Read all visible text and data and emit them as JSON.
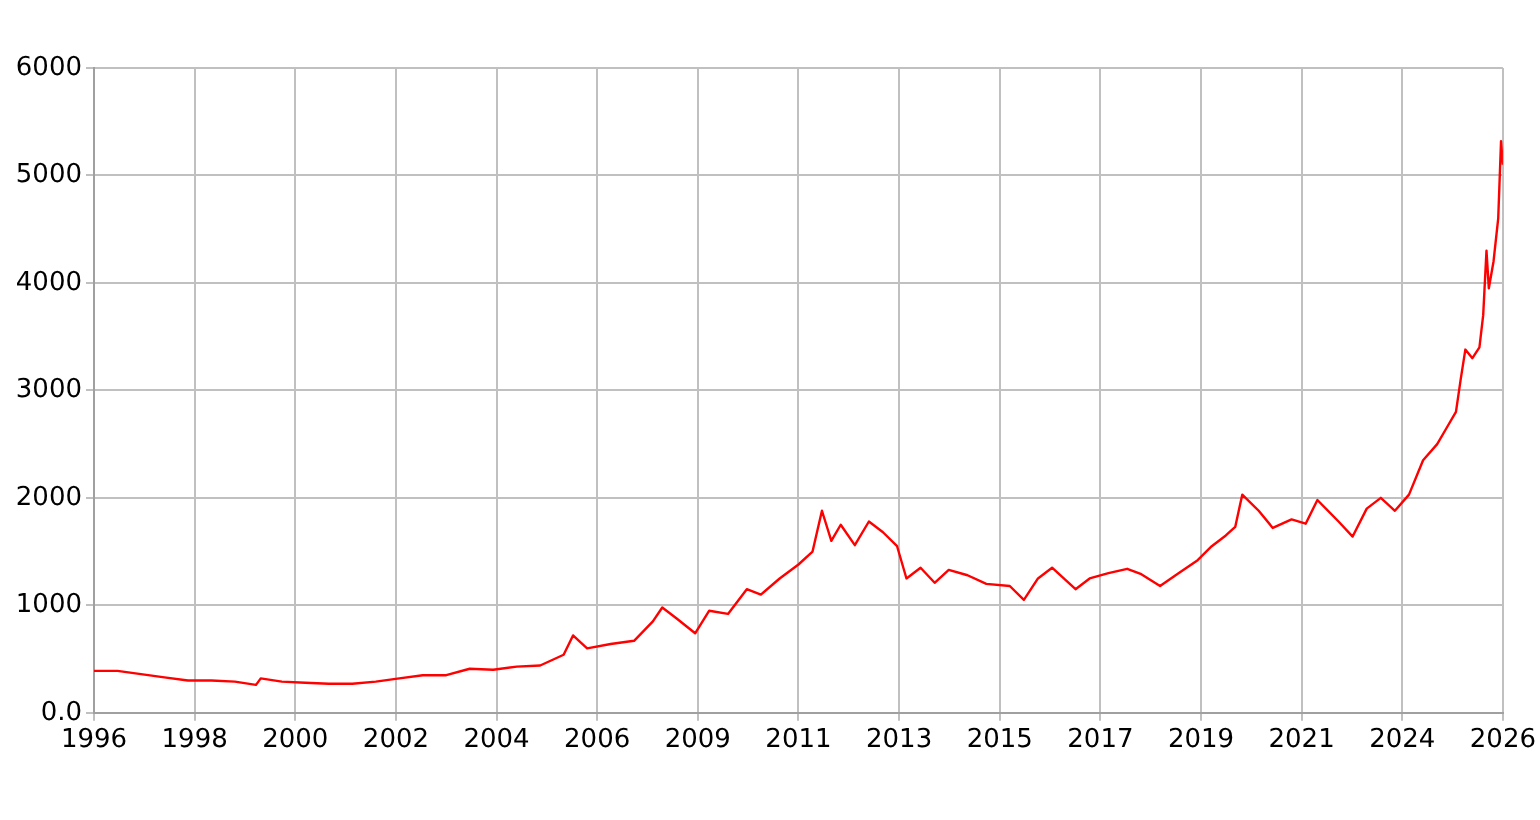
{
  "chart_data": {
    "type": "line",
    "x": [
      1995.7,
      1996.2,
      1996.7,
      1997.2,
      1997.7,
      1998.2,
      1998.7,
      1999.15,
      1999.25,
      1999.7,
      2000.2,
      2000.7,
      2001.2,
      2001.7,
      2002.2,
      2002.7,
      2003.2,
      2003.7,
      2004.2,
      2004.7,
      2005.2,
      2005.7,
      2005.9,
      2006.2,
      2006.7,
      2007.2,
      2007.6,
      2007.8,
      2008.1,
      2008.5,
      2008.8,
      2009.2,
      2009.6,
      2009.9,
      2010.3,
      2010.7,
      2011.0,
      2011.2,
      2011.4,
      2011.6,
      2011.9,
      2012.2,
      2012.5,
      2012.8,
      2013.0,
      2013.3,
      2013.6,
      2013.9,
      2014.3,
      2014.7,
      2015.2,
      2015.5,
      2015.8,
      2016.1,
      2016.6,
      2016.9,
      2017.3,
      2017.7,
      2018.0,
      2018.4,
      2018.8,
      2019.2,
      2019.5,
      2019.8,
      2020.0,
      2020.15,
      2020.5,
      2020.8,
      2021.2,
      2021.5,
      2021.75,
      2022.2,
      2022.5,
      2022.8,
      2023.1,
      2023.4,
      2023.7,
      2024.0,
      2024.3,
      2024.5,
      2024.7,
      2024.8,
      2024.9,
      2025.05,
      2025.2,
      2025.28,
      2025.35,
      2025.4,
      2025.5,
      2025.6,
      2025.66,
      2025.7
    ],
    "series": [
      {
        "color": "#ff0000",
        "values": [
          390,
          390,
          360,
          330,
          300,
          300,
          290,
          260,
          320,
          290,
          280,
          270,
          270,
          290,
          320,
          350,
          350,
          410,
          400,
          430,
          440,
          540,
          720,
          600,
          640,
          670,
          850,
          980,
          880,
          740,
          950,
          920,
          1150,
          1100,
          1250,
          1380,
          1500,
          1880,
          1600,
          1750,
          1560,
          1780,
          1680,
          1550,
          1250,
          1350,
          1210,
          1330,
          1280,
          1200,
          1180,
          1050,
          1250,
          1350,
          1150,
          1250,
          1300,
          1340,
          1290,
          1180,
          1300,
          1420,
          1550,
          1650,
          1730,
          2030,
          1880,
          1720,
          1800,
          1760,
          1980,
          1780,
          1640,
          1900,
          2000,
          1880,
          2030,
          2350,
          2500,
          2650,
          2800,
          3100,
          3380,
          3300,
          3400,
          3700,
          4300,
          3950,
          4200,
          4600,
          5320,
          5100
        ]
      }
    ],
    "xlim": [
      1995.7,
      2025.7
    ],
    "xticks": [
      {
        "value": 1995.7,
        "label": "1996"
      },
      {
        "value": 1997.843,
        "label": "1998"
      },
      {
        "value": 1999.986,
        "label": "2000"
      },
      {
        "value": 2002.129,
        "label": "2002"
      },
      {
        "value": 2004.271,
        "label": "2004"
      },
      {
        "value": 2006.414,
        "label": "2006"
      },
      {
        "value": 2008.557,
        "label": "2009"
      },
      {
        "value": 2010.7,
        "label": "2011"
      },
      {
        "value": 2012.843,
        "label": "2013"
      },
      {
        "value": 2014.986,
        "label": "2015"
      },
      {
        "value": 2017.129,
        "label": "2017"
      },
      {
        "value": 2019.271,
        "label": "2019"
      },
      {
        "value": 2021.414,
        "label": "2021"
      },
      {
        "value": 2023.557,
        "label": "2024"
      },
      {
        "value": 2025.7,
        "label": "2026"
      }
    ],
    "ylim": [
      0,
      6000
    ],
    "yticks": [
      {
        "value": 0,
        "label": "0.0"
      },
      1000,
      2000,
      3000,
      4000,
      5000,
      6000
    ],
    "grid": true,
    "marker": "none",
    "line_style": "solid"
  }
}
